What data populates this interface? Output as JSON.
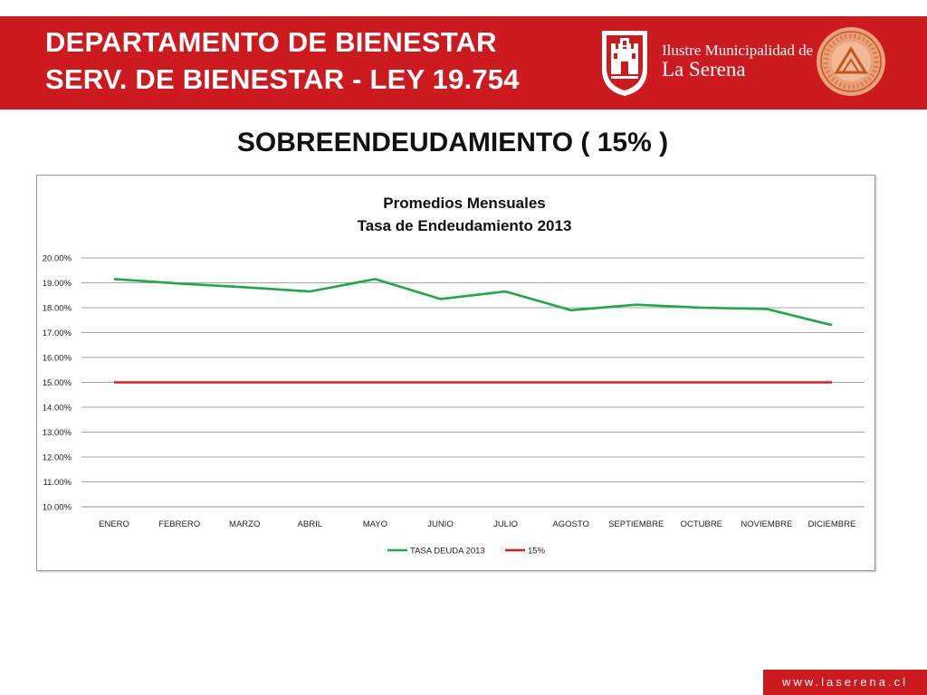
{
  "header": {
    "line1": "DEPARTAMENTO DE BIENESTAR",
    "line2": "SERV. DE BIENESTAR - LEY 19.754",
    "municipality_line1": "Ilustre Municipalidad de",
    "municipality_line2": "La Serena",
    "background_color": "#cc1a1f",
    "crest_icon": "castle-crest-icon",
    "seal_icon": "bienestar-seal-icon"
  },
  "page_title": "SOBREENDEUDAMIENTO ( 15% )",
  "footer": {
    "website": "www.laserena.cl"
  },
  "chart_data": {
    "type": "line",
    "title": "Promedios Mensuales",
    "subtitle": "Tasa de Endeudamiento 2013",
    "xlabel": "",
    "ylabel": "",
    "categories": [
      "ENERO",
      "FEBRERO",
      "MARZO",
      "ABRIL",
      "MAYO",
      "JUNIO",
      "JULIO",
      "AGOSTO",
      "SEPTIEMBRE",
      "OCTUBRE",
      "NOVIEMBRE",
      "DICIEMBRE"
    ],
    "ylim": [
      0.1,
      0.2
    ],
    "yticks": [
      "20.00%",
      "19.00%",
      "18.00%",
      "17.00%",
      "16.00%",
      "15.00%",
      "14.00%",
      "13.00%",
      "12.00%",
      "11.00%",
      "10.00%"
    ],
    "grid": true,
    "legend_position": "bottom",
    "series": [
      {
        "name": "TASA DEUDA 2013",
        "color": "#1fa846",
        "values": [
          0.1915,
          0.1897,
          0.1882,
          0.1865,
          0.1915,
          0.1835,
          0.1865,
          0.179,
          0.1812,
          0.18,
          0.1795,
          0.173
        ]
      },
      {
        "name": "15%",
        "color": "#e0191e",
        "values": [
          0.15,
          0.15,
          0.15,
          0.15,
          0.15,
          0.15,
          0.15,
          0.15,
          0.15,
          0.15,
          0.15,
          0.15
        ]
      }
    ]
  }
}
